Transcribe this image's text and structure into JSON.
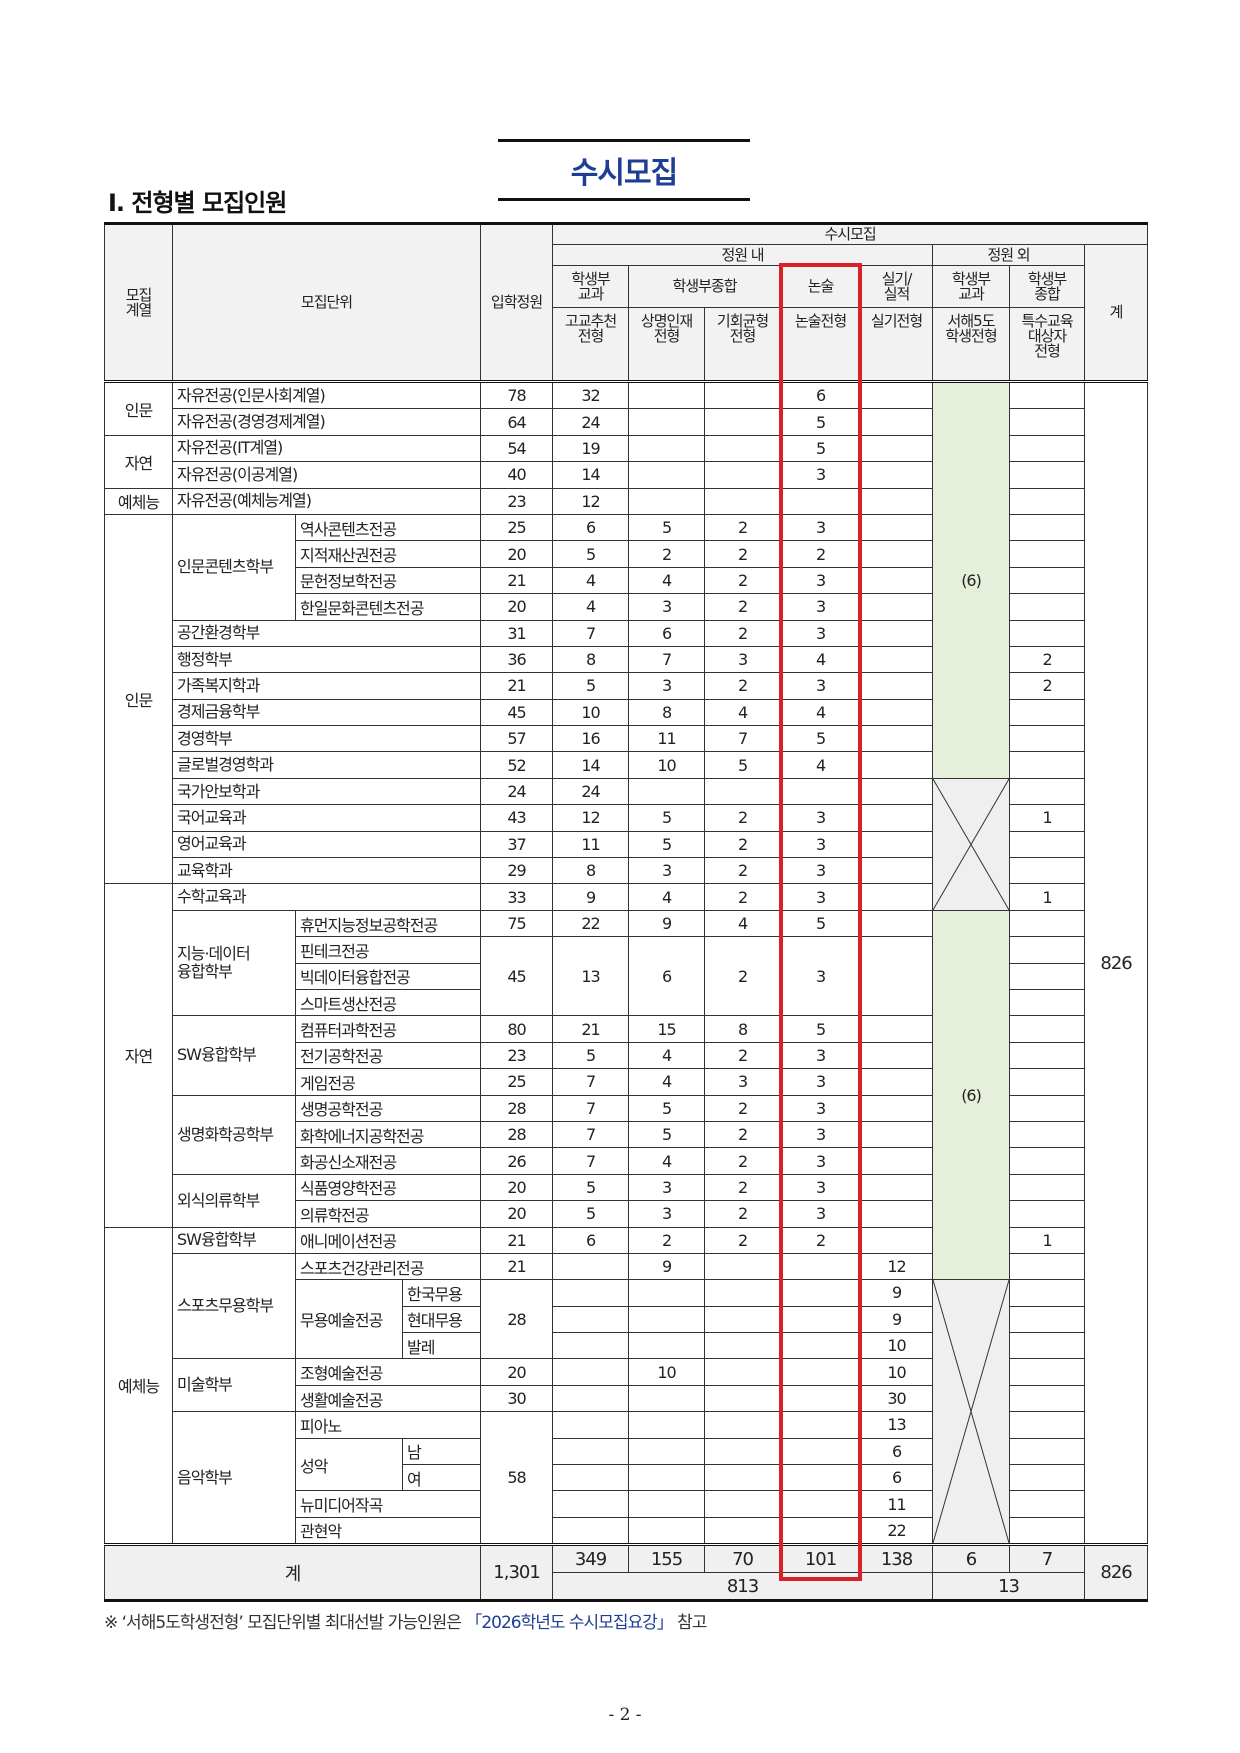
{
  "doc_title": "수시모집",
  "section_title": "Ⅰ. 전형별 모집인원",
  "colors": {
    "title_blue": "#1f3d92",
    "highlight_red": "#d7222a",
    "green_fill": "#e6efda",
    "header_gray": "#f2f2f2"
  },
  "header": {
    "category": "모집\n계열",
    "unit": "모집단위",
    "quota": "입학정원",
    "susi": "수시모집",
    "in_quota": "정원 내",
    "out_quota": "정원 외",
    "total": "계",
    "groups": [
      "학생부\n교과",
      "학생부종합",
      "논술",
      "실기/\n실적",
      "학생부\n교과",
      "학생부\n종합"
    ],
    "tracks": [
      "고교추천\n전형",
      "상명인재\n전형",
      "기회균형\n전형",
      "논술전형",
      "실기전형",
      "서해5도\n학생전형",
      "특수교육\n대상자\n전형"
    ]
  },
  "rows": [
    {
      "cat": "인문",
      "unit": "자유전공(인문사회계열)",
      "quota": "78",
      "c": [
        "32",
        "",
        "",
        "6",
        ""
      ],
      "sp": ""
    },
    {
      "unit": "자유전공(경영경제계열)",
      "quota": "64",
      "c": [
        "24",
        "",
        "",
        "5",
        ""
      ],
      "sp": ""
    },
    {
      "cat": "자연",
      "unit": "자유전공(IT계열)",
      "quota": "54",
      "c": [
        "19",
        "",
        "",
        "5",
        ""
      ],
      "sp": ""
    },
    {
      "unit": "자유전공(이공계열)",
      "quota": "40",
      "c": [
        "14",
        "",
        "",
        "3",
        ""
      ],
      "sp": ""
    },
    {
      "cat": "예체능",
      "unit": "자유전공(예체능계열)",
      "quota": "23",
      "c": [
        "12",
        "",
        "",
        "",
        ""
      ],
      "sp": ""
    },
    {
      "cat": "인문",
      "unit": "인문콘텐츠학부",
      "major": "역사콘텐츠전공",
      "quota": "25",
      "c": [
        "6",
        "5",
        "2",
        "3",
        ""
      ],
      "sp": ""
    },
    {
      "major": "지적재산권전공",
      "quota": "20",
      "c": [
        "5",
        "2",
        "2",
        "2",
        ""
      ],
      "sp": ""
    },
    {
      "major": "문헌정보학전공",
      "quota": "21",
      "c": [
        "4",
        "4",
        "2",
        "3",
        ""
      ],
      "sp": ""
    },
    {
      "major": "한일문화콘텐츠전공",
      "quota": "20",
      "c": [
        "4",
        "3",
        "2",
        "3",
        ""
      ],
      "sp": ""
    },
    {
      "unit": "공간환경학부",
      "quota": "31",
      "c": [
        "7",
        "6",
        "2",
        "3",
        ""
      ],
      "sp": ""
    },
    {
      "unit": "행정학부",
      "quota": "36",
      "c": [
        "8",
        "7",
        "3",
        "4",
        ""
      ],
      "sp": "2"
    },
    {
      "unit": "가족복지학과",
      "quota": "21",
      "c": [
        "5",
        "3",
        "2",
        "3",
        ""
      ],
      "sp": "2"
    },
    {
      "unit": "경제금융학부",
      "quota": "45",
      "c": [
        "10",
        "8",
        "4",
        "4",
        ""
      ],
      "sp": ""
    },
    {
      "unit": "경영학부",
      "quota": "57",
      "c": [
        "16",
        "11",
        "7",
        "5",
        ""
      ],
      "sp": ""
    },
    {
      "unit": "글로벌경영학과",
      "quota": "52",
      "c": [
        "14",
        "10",
        "5",
        "4",
        ""
      ],
      "sp": ""
    },
    {
      "unit": "국가안보학과",
      "quota": "24",
      "c": [
        "24",
        "",
        "",
        "",
        ""
      ],
      "sp": ""
    },
    {
      "unit": "국어교육과",
      "quota": "43",
      "c": [
        "12",
        "5",
        "2",
        "3",
        ""
      ],
      "sp": "1"
    },
    {
      "unit": "영어교육과",
      "quota": "37",
      "c": [
        "11",
        "5",
        "2",
        "3",
        ""
      ],
      "sp": ""
    },
    {
      "unit": "교육학과",
      "quota": "29",
      "c": [
        "8",
        "3",
        "2",
        "3",
        ""
      ],
      "sp": ""
    },
    {
      "cat": "자연",
      "unit": "수학교육과",
      "quota": "33",
      "c": [
        "9",
        "4",
        "2",
        "3",
        ""
      ],
      "sp": "1"
    },
    {
      "unit": "지능·데이터\n융합학부",
      "major": "휴먼지능정보공학전공",
      "quota": "75",
      "c": [
        "22",
        "9",
        "4",
        "5",
        ""
      ],
      "sp": ""
    },
    {
      "major": "핀테크전공",
      "quota": "45",
      "c": [
        "13",
        "6",
        "2",
        "3",
        ""
      ],
      "sp": ""
    },
    {
      "major": "빅데이터융합전공",
      "sp": ""
    },
    {
      "major": "스마트생산전공",
      "sp": ""
    },
    {
      "unit": "SW융합학부",
      "major": "컴퓨터과학전공",
      "quota": "80",
      "c": [
        "21",
        "15",
        "8",
        "5",
        ""
      ],
      "sp": ""
    },
    {
      "major": "전기공학전공",
      "quota": "23",
      "c": [
        "5",
        "4",
        "2",
        "3",
        ""
      ],
      "sp": ""
    },
    {
      "major": "게임전공",
      "quota": "25",
      "c": [
        "7",
        "4",
        "3",
        "3",
        ""
      ],
      "sp": ""
    },
    {
      "unit": "생명화학공학부",
      "major": "생명공학전공",
      "quota": "28",
      "c": [
        "7",
        "5",
        "2",
        "3",
        ""
      ],
      "sp": ""
    },
    {
      "major": "화학에너지공학전공",
      "quota": "28",
      "c": [
        "7",
        "5",
        "2",
        "3",
        ""
      ],
      "sp": ""
    },
    {
      "major": "화공신소재전공",
      "quota": "26",
      "c": [
        "7",
        "4",
        "2",
        "3",
        ""
      ],
      "sp": ""
    },
    {
      "unit": "외식의류학부",
      "major": "식품영양학전공",
      "quota": "20",
      "c": [
        "5",
        "3",
        "2",
        "3",
        ""
      ],
      "sp": ""
    },
    {
      "major": "의류학전공",
      "quota": "20",
      "c": [
        "5",
        "3",
        "2",
        "3",
        ""
      ],
      "sp": ""
    },
    {
      "cat": "예체능",
      "unit": "SW융합학부",
      "major": "애니메이션전공",
      "quota": "21",
      "c": [
        "6",
        "2",
        "2",
        "2",
        ""
      ],
      "sp": "1"
    },
    {
      "unit": "스포츠무용학부",
      "major": "스포츠건강관리전공",
      "quota": "21",
      "c": [
        "",
        "9",
        "",
        "",
        "12"
      ],
      "sp": ""
    },
    {
      "major": "무용예술전공",
      "track": "한국무용",
      "quota": "28",
      "c": [
        "",
        "",
        "",
        "",
        "9"
      ],
      "sp": ""
    },
    {
      "track": "현대무용",
      "c": [
        "",
        "",
        "",
        "",
        "9"
      ],
      "sp": ""
    },
    {
      "track": "발레",
      "c": [
        "",
        "",
        "",
        "",
        "10"
      ],
      "sp": ""
    },
    {
      "unit": "미술학부",
      "major": "조형예술전공",
      "quota": "20",
      "c": [
        "",
        "10",
        "",
        "",
        "10"
      ],
      "sp": ""
    },
    {
      "major": "생활예술전공",
      "quota": "30",
      "c": [
        "",
        "",
        "",
        "",
        "30"
      ],
      "sp": ""
    },
    {
      "unit": "음악학부",
      "major": "피아노",
      "quota": "58",
      "c": [
        "",
        "",
        "",
        "",
        "13"
      ],
      "sp": ""
    },
    {
      "major": "성악",
      "track": "남",
      "c": [
        "",
        "",
        "",
        "",
        "6"
      ],
      "sp": ""
    },
    {
      "track": "여",
      "c": [
        "",
        "",
        "",
        "",
        "6"
      ],
      "sp": ""
    },
    {
      "major": "뉴미디어작곡",
      "c": [
        "",
        "",
        "",
        "",
        "11"
      ],
      "sp": ""
    },
    {
      "major": "관현악",
      "c": [
        "",
        "",
        "",
        "",
        "22"
      ],
      "sp": ""
    }
  ],
  "seohae_blocks": [
    {
      "text": "(6)",
      "fill": "green"
    },
    {
      "text": "",
      "fill": "x"
    },
    {
      "text": "(6)",
      "fill": "green"
    },
    {
      "text": "",
      "fill": "x"
    }
  ],
  "grand_total_column": "826",
  "totals": {
    "label": "계",
    "quota": "1,301",
    "by_track": [
      "349",
      "155",
      "70",
      "101",
      "138",
      "6",
      "7"
    ],
    "in_quota_sum": "813",
    "out_quota_sum": "13",
    "total": "826"
  },
  "footnote": {
    "prefix": "※ ‘서해5도학생전형’ 모집단위별 최대선발 가능인원은 ",
    "link": "「2026학년도 수시모집요강」",
    "suffix": " 참고"
  },
  "page_number": "- 2 -"
}
